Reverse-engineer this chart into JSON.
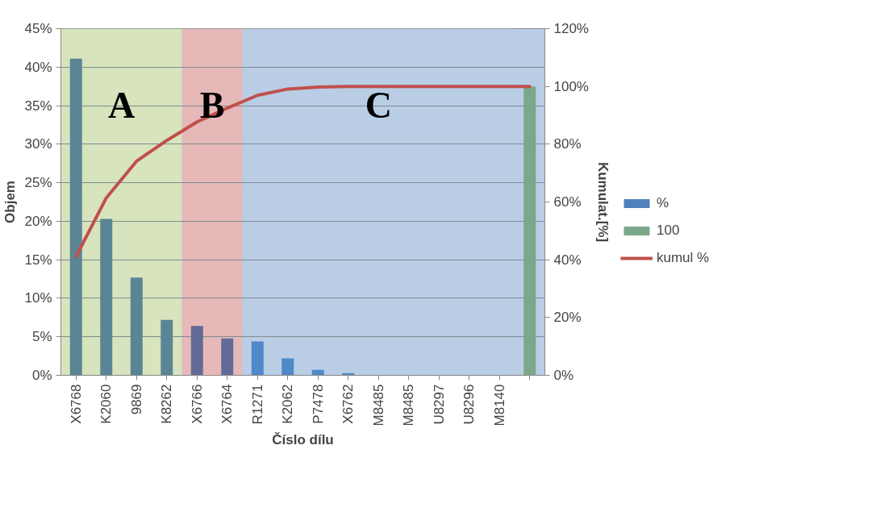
{
  "chart_data": {
    "type": "bar",
    "xlabel": "Číslo dílu",
    "ylabel": "Objem",
    "y2label": "Kumulat.[%]",
    "categories": [
      "X6768",
      "K2060",
      "9869",
      "K8262",
      "X6766",
      "X6764",
      "R1271",
      "K2062",
      "P7478",
      "X6762",
      "M8485",
      "M8485",
      "U8297",
      "U8296",
      "M8140",
      null
    ],
    "series": [
      {
        "name": "%",
        "color": "#4f81bd",
        "colors": [
          "#5b8595",
          "#5b8595",
          "#5b8595",
          "#5b8595",
          "#636a96",
          "#636a96",
          "#5088c8",
          "#5088c8",
          "#5088c8",
          "#5088c8",
          "#5088c8",
          "#5088c8",
          "#5088c8",
          "#5088c8",
          "#5088c8",
          "#5088c8"
        ],
        "values": [
          41.1,
          20.3,
          12.7,
          7.2,
          6.4,
          4.8,
          4.4,
          2.2,
          0.7,
          0.3,
          0,
          0,
          0,
          0,
          0,
          0
        ]
      },
      {
        "name": "100",
        "color": "#7ba889",
        "axis": "y2",
        "values": [
          null,
          null,
          null,
          null,
          null,
          null,
          null,
          null,
          null,
          null,
          null,
          null,
          null,
          null,
          null,
          100
        ]
      },
      {
        "name": "kumul %",
        "type": "line",
        "color": "#c0504d",
        "axis": "y2",
        "values": [
          41.1,
          61.4,
          74.1,
          81.3,
          87.7,
          92.5,
          96.9,
          99.1,
          99.8,
          100,
          100,
          100,
          100,
          100,
          100,
          100
        ]
      }
    ],
    "ylim": [
      0,
      45
    ],
    "yticks": [
      {
        "value": 0,
        "label": "0%"
      },
      {
        "value": 5,
        "label": "5%"
      },
      {
        "value": 10,
        "label": "10%"
      },
      {
        "value": 15,
        "label": "15%"
      },
      {
        "value": 20,
        "label": "20%"
      },
      {
        "value": 25,
        "label": "25%"
      },
      {
        "value": 30,
        "label": "30%"
      },
      {
        "value": 35,
        "label": "35%"
      },
      {
        "value": 40,
        "label": "40%"
      },
      {
        "value": 45,
        "label": "45%"
      }
    ],
    "y2lim": [
      0,
      120
    ],
    "y2ticks": [
      {
        "value": 0,
        "label": "0%"
      },
      {
        "value": 20,
        "label": "20%"
      },
      {
        "value": 40,
        "label": "40%"
      },
      {
        "value": 60,
        "label": "60%"
      },
      {
        "value": 80,
        "label": "80%"
      },
      {
        "value": 100,
        "label": "100%"
      },
      {
        "value": 120,
        "label": "120%"
      }
    ],
    "bands": [
      {
        "axis": "x",
        "from": "X6768",
        "to": "K8262",
        "label": "A",
        "color": "#d7e4bd"
      },
      {
        "axis": "x",
        "from": "X6766",
        "to": "X6764",
        "label": "B",
        "color": "#e6b9b8"
      },
      {
        "axis": "x",
        "from": "R1271",
        "to": "M8140",
        "label": "C",
        "color": "#b9cde5"
      }
    ],
    "grid": "y",
    "legend": "right",
    "marker": "none",
    "line_style": "solid"
  }
}
